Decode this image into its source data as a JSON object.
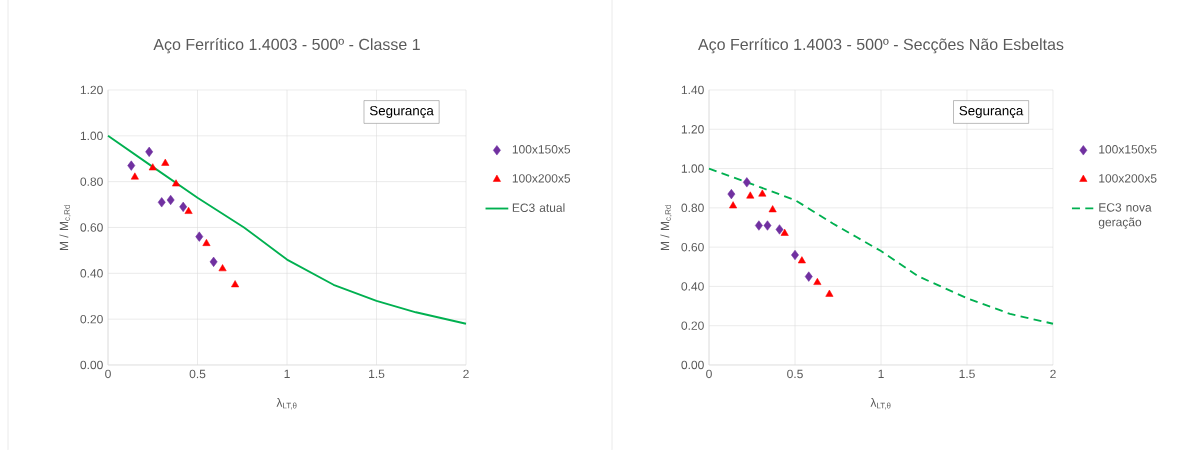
{
  "chart_data": [
    {
      "type": "scatter",
      "title": "Aço Ferrítico 1.4003 - 500º - Classe 1",
      "xlabel": "λ$_{LT,θ}$",
      "ylabel": "M / M$_{c,Rd}$",
      "xlim": [
        0,
        2
      ],
      "xticks": [
        0,
        0.5,
        1,
        1.5,
        2
      ],
      "ylim": [
        0,
        1.2
      ],
      "yticks": [
        {
          "value": 0,
          "label": "0.00"
        },
        {
          "value": 0.2,
          "label": "0.20"
        },
        {
          "value": 0.4,
          "label": "0.40"
        },
        {
          "value": 0.6,
          "label": "0.60"
        },
        {
          "value": 0.8,
          "label": "0.80"
        },
        {
          "value": 1.0,
          "label": "1.00"
        },
        {
          "value": 1.2,
          "label": "1.20"
        }
      ],
      "grid": true,
      "legend": "right",
      "annotations": [
        "Segurança"
      ],
      "series": [
        {
          "name": "100x150x5",
          "color": "#7030a0",
          "marker": "diamond",
          "x": [
            0.13,
            0.23,
            0.3,
            0.35,
            0.42,
            0.51,
            0.59
          ],
          "values": [
            0.87,
            0.93,
            0.71,
            0.72,
            0.69,
            0.56,
            0.45
          ]
        },
        {
          "name": "100x200x5",
          "color": "#ff0000",
          "marker": "triangle",
          "x": [
            0.15,
            0.25,
            0.32,
            0.38,
            0.45,
            0.55,
            0.64,
            0.71
          ],
          "values": [
            0.82,
            0.86,
            0.88,
            0.79,
            0.67,
            0.53,
            0.42,
            0.35
          ]
        },
        {
          "name": "EC3 atual",
          "type": "line",
          "color": "#00b050",
          "marker": "none",
          "line_style": "solid",
          "x": [
            0,
            0.24,
            0.5,
            0.76,
            1.0,
            1.26,
            1.5,
            1.72,
            2.0
          ],
          "values": [
            1.0,
            0.87,
            0.73,
            0.6,
            0.46,
            0.35,
            0.28,
            0.23,
            0.18
          ]
        }
      ]
    },
    {
      "type": "scatter",
      "title": "Aço Ferrítico 1.4003 - 500º - Secções Não Esbeltas",
      "xlabel": "λ$_{LT,θ}$",
      "ylabel": "M / M$_{c,Rd}$",
      "xlim": [
        0,
        2
      ],
      "xticks": [
        0,
        0.5,
        1,
        1.5,
        2
      ],
      "ylim": [
        0,
        1.4
      ],
      "yticks": [
        {
          "value": 0,
          "label": "0.00"
        },
        {
          "value": 0.2,
          "label": "0.20"
        },
        {
          "value": 0.4,
          "label": "0.40"
        },
        {
          "value": 0.6,
          "label": "0.60"
        },
        {
          "value": 0.8,
          "label": "0.80"
        },
        {
          "value": 1.0,
          "label": "1.00"
        },
        {
          "value": 1.2,
          "label": "1.20"
        },
        {
          "value": 1.4,
          "label": "1.40"
        }
      ],
      "grid": true,
      "legend": "right",
      "annotations": [
        "Segurança"
      ],
      "series": [
        {
          "name": "100x150x5",
          "color": "#7030a0",
          "marker": "diamond",
          "x": [
            0.13,
            0.22,
            0.29,
            0.34,
            0.41,
            0.5,
            0.58
          ],
          "values": [
            0.87,
            0.93,
            0.71,
            0.71,
            0.69,
            0.56,
            0.45
          ]
        },
        {
          "name": "100x200x5",
          "color": "#ff0000",
          "marker": "triangle",
          "x": [
            0.14,
            0.24,
            0.31,
            0.37,
            0.44,
            0.54,
            0.63,
            0.7
          ],
          "values": [
            0.81,
            0.86,
            0.87,
            0.79,
            0.67,
            0.53,
            0.42,
            0.36
          ]
        },
        {
          "name": "EC3 nova geração",
          "type": "line",
          "color": "#00b050",
          "marker": "none",
          "line_style": "dashed",
          "x": [
            0,
            0.22,
            0.5,
            0.72,
            0.86,
            1.0,
            1.22,
            1.5,
            1.75,
            2.0
          ],
          "values": [
            1.0,
            0.93,
            0.84,
            0.72,
            0.65,
            0.58,
            0.45,
            0.34,
            0.26,
            0.21
          ]
        }
      ]
    }
  ]
}
